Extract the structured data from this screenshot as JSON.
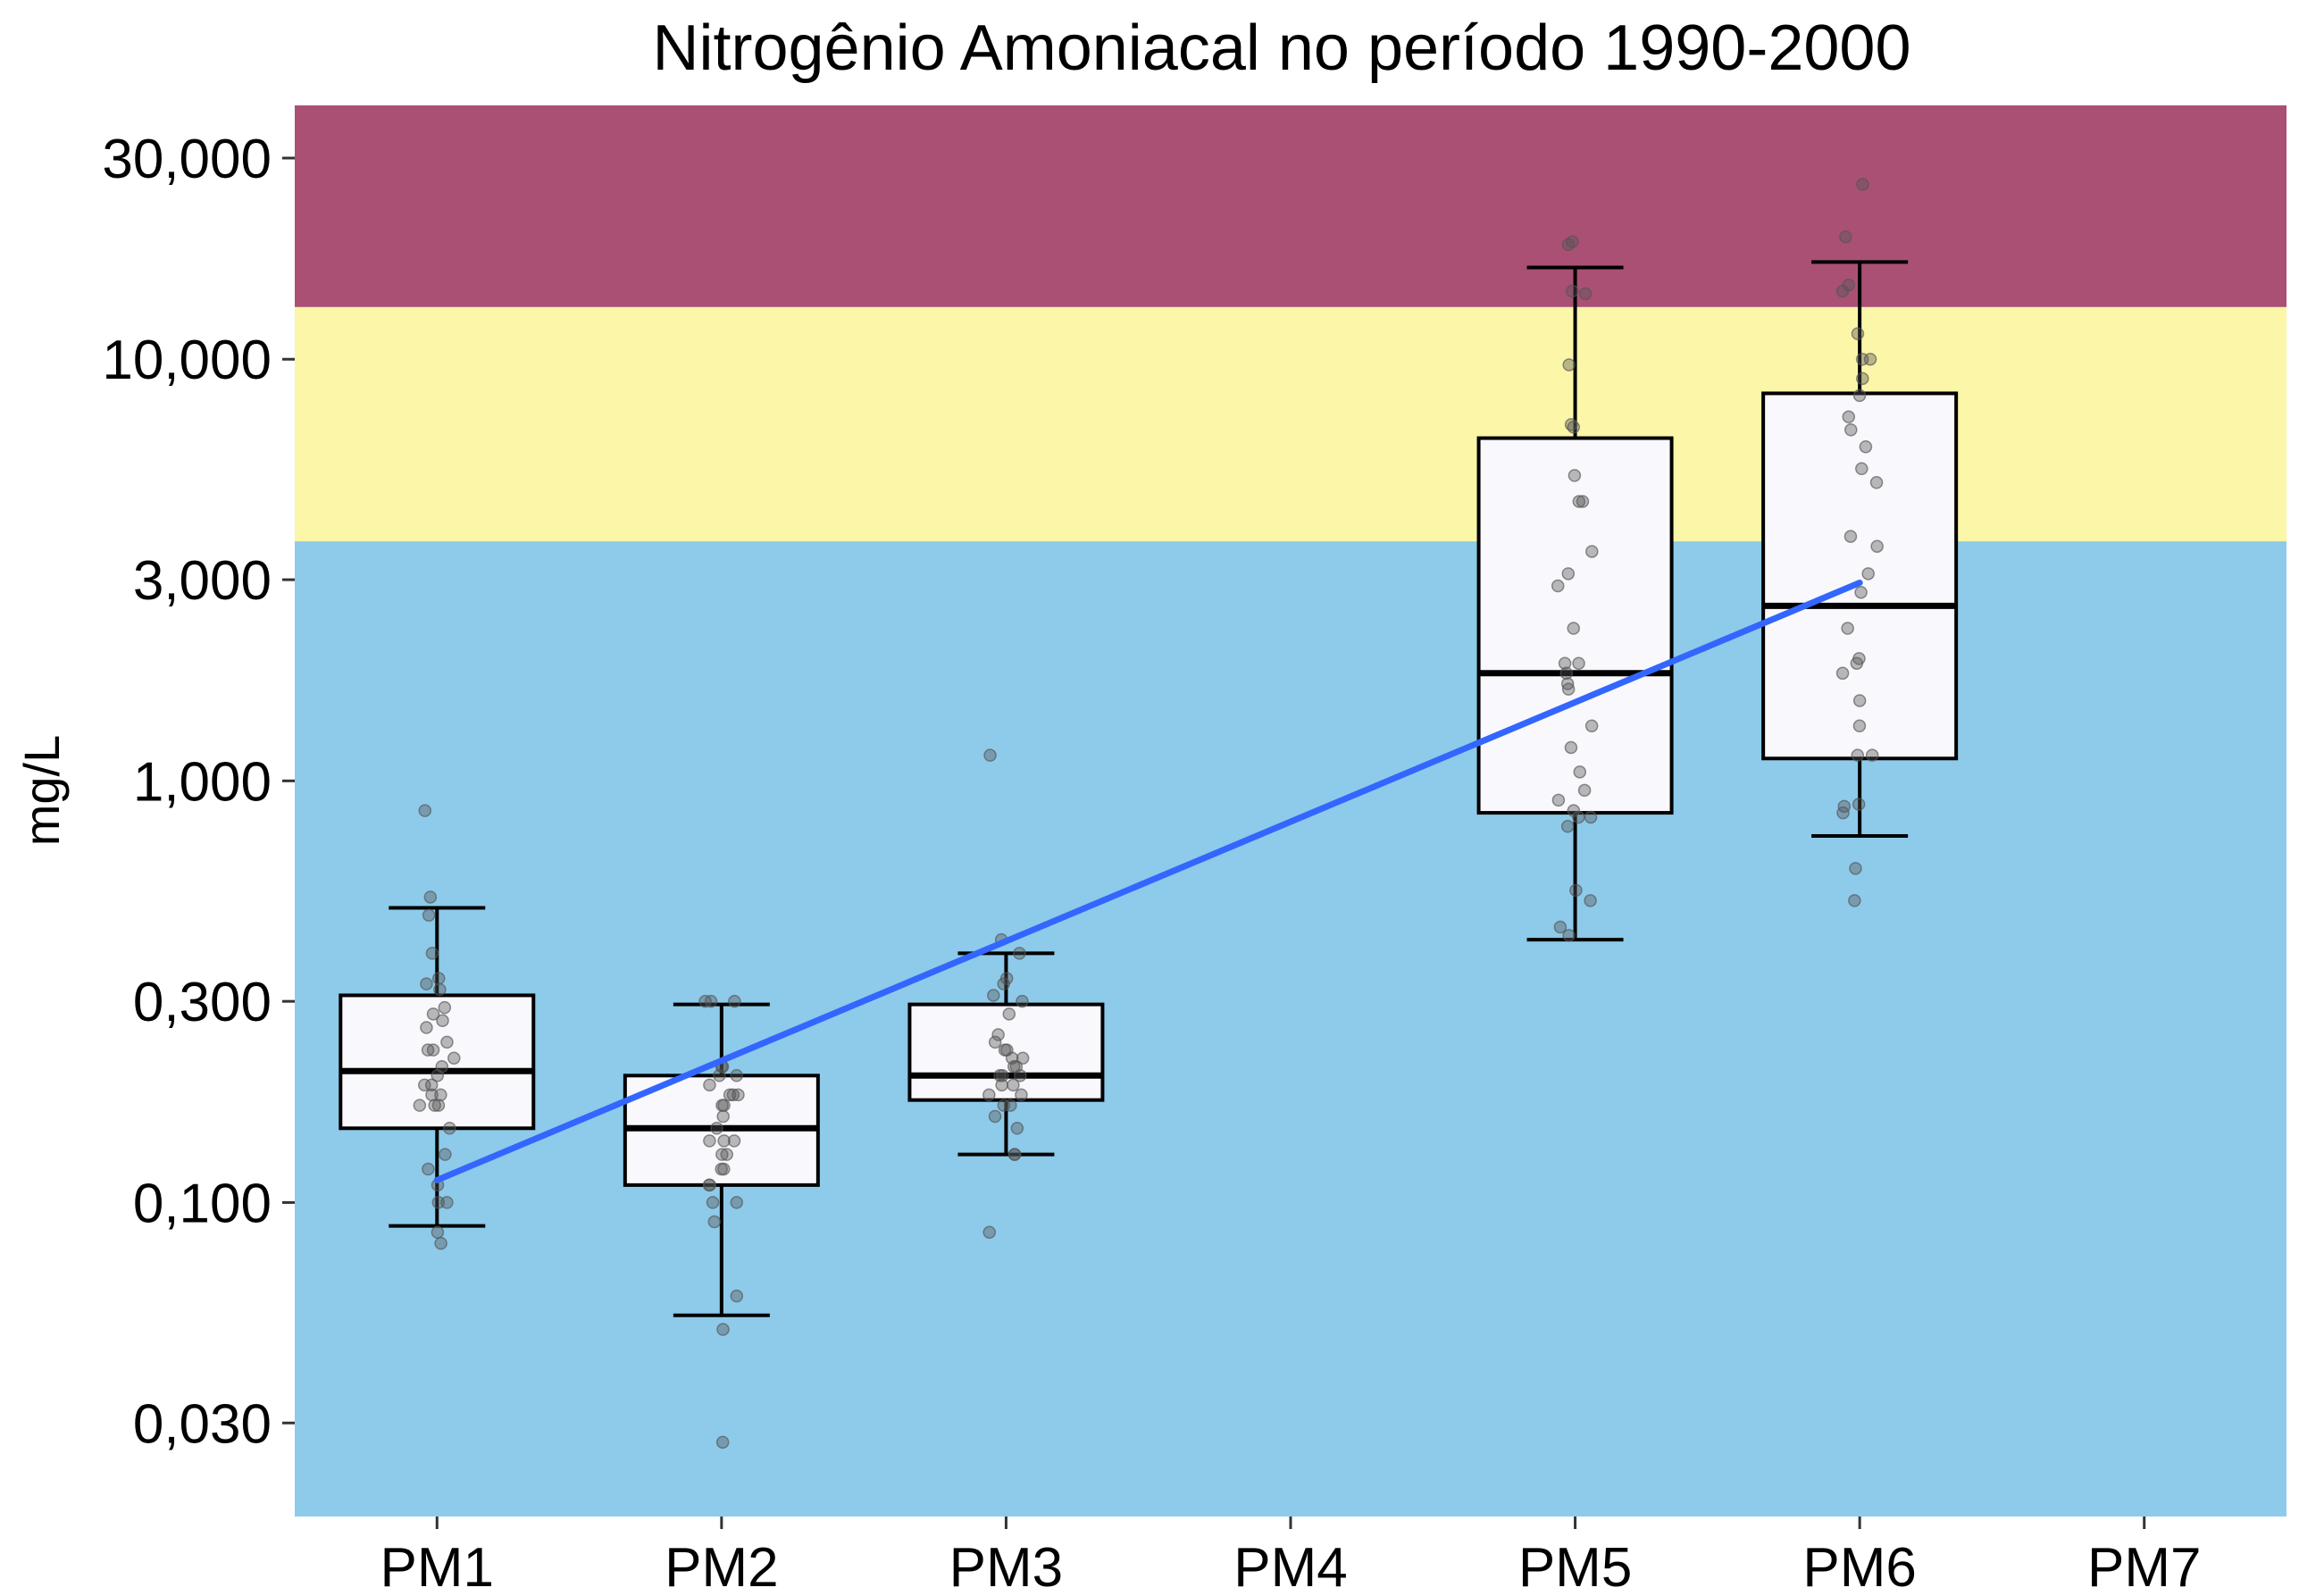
{
  "chart_data": {
    "type": "box",
    "title": "Nitrogênio Amoniacal no período 1990-2000",
    "xlabel": "",
    "ylabel": "mg/L",
    "y_scale": "log",
    "ylim": [
      0.018,
      40
    ],
    "yticks": [
      0.03,
      0.1,
      0.3,
      1,
      3,
      10,
      30
    ],
    "ytick_labels": [
      "0,030",
      "0,100",
      "0,300",
      "1,000",
      "3,000",
      "10,000",
      "30,000"
    ],
    "categories": [
      "PM1",
      "PM2",
      "PM3",
      "PM4",
      "PM5",
      "PM6",
      "PM7"
    ],
    "bands": [
      {
        "from": 0.018,
        "to": 3.7,
        "color": "#8ecae9"
      },
      {
        "from": 3.7,
        "to": 13.3,
        "color": "#fbf6a8"
      },
      {
        "from": 13.3,
        "to": 40,
        "color": "#aa5075"
      }
    ],
    "boxes": [
      {
        "category": "PM1",
        "q1": 0.15,
        "median": 0.205,
        "q3": 0.31,
        "whisker_low": 0.088,
        "whisker_high": 0.5
      },
      {
        "category": "PM2",
        "q1": 0.11,
        "median": 0.15,
        "q3": 0.2,
        "whisker_low": 0.054,
        "whisker_high": 0.295
      },
      {
        "category": "PM3",
        "q1": 0.175,
        "median": 0.2,
        "q3": 0.295,
        "whisker_low": 0.13,
        "whisker_high": 0.39
      },
      {
        "category": "PM5",
        "q1": 0.84,
        "median": 1.8,
        "q3": 6.5,
        "whisker_low": 0.42,
        "whisker_high": 16.5
      },
      {
        "category": "PM6",
        "q1": 1.13,
        "median": 2.6,
        "q3": 8.3,
        "whisker_low": 0.74,
        "whisker_high": 17
      }
    ],
    "points": [
      {
        "category": "PM1",
        "values": [
          0.85,
          0.53,
          0.48,
          0.39,
          0.34,
          0.33,
          0.32,
          0.29,
          0.28,
          0.27,
          0.26,
          0.24,
          0.23,
          0.23,
          0.22,
          0.21,
          0.2,
          0.19,
          0.19,
          0.18,
          0.18,
          0.17,
          0.17,
          0.17,
          0.15,
          0.13,
          0.12,
          0.11,
          0.1,
          0.1,
          0.085,
          0.08
        ]
      },
      {
        "category": "PM2",
        "values": [
          0.3,
          0.3,
          0.3,
          0.21,
          0.21,
          0.2,
          0.2,
          0.19,
          0.18,
          0.18,
          0.18,
          0.17,
          0.17,
          0.16,
          0.15,
          0.14,
          0.14,
          0.14,
          0.13,
          0.13,
          0.12,
          0.12,
          0.11,
          0.11,
          0.1,
          0.1,
          0.09,
          0.06,
          0.05,
          0.027
        ]
      },
      {
        "category": "PM3",
        "values": [
          1.15,
          0.42,
          0.39,
          0.34,
          0.33,
          0.31,
          0.3,
          0.28,
          0.25,
          0.24,
          0.23,
          0.23,
          0.22,
          0.22,
          0.21,
          0.21,
          0.2,
          0.2,
          0.2,
          0.19,
          0.19,
          0.18,
          0.18,
          0.17,
          0.17,
          0.16,
          0.15,
          0.13,
          0.13,
          0.085
        ]
      },
      {
        "category": "PM5",
        "values": [
          19,
          18.7,
          14.5,
          14.3,
          9.7,
          7,
          6.9,
          5.3,
          4.6,
          4.6,
          3.5,
          3.1,
          2.9,
          2.3,
          1.9,
          1.9,
          1.8,
          1.7,
          1.65,
          1.35,
          1.2,
          1.05,
          0.95,
          0.9,
          0.85,
          0.82,
          0.82,
          0.78,
          0.55,
          0.52,
          0.45,
          0.43
        ]
      },
      {
        "category": "PM6",
        "values": [
          26,
          19.5,
          15,
          14.5,
          11.5,
          10,
          10,
          9,
          8.2,
          7.3,
          6.8,
          6.2,
          5.5,
          5.1,
          3.8,
          3.6,
          3.1,
          2.8,
          2.3,
          1.95,
          1.9,
          1.8,
          1.55,
          1.35,
          1.15,
          1.15,
          0.88,
          0.87,
          0.84,
          0.62,
          0.52
        ]
      }
    ],
    "trend": {
      "color": "#3366ff",
      "from": {
        "x": "PM1",
        "y": 0.113
      },
      "to": {
        "x": "PM6",
        "y": 2.95
      }
    },
    "box_fill": "#f8f8fd",
    "point_color": "#555555"
  }
}
